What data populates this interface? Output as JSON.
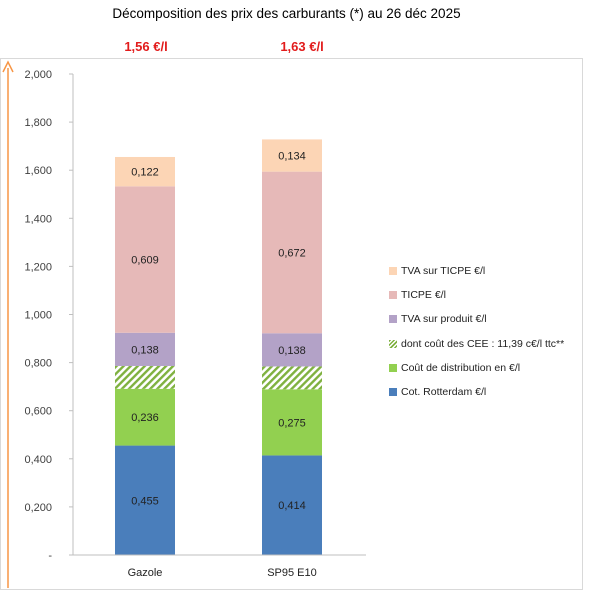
{
  "title": "Décomposition des prix des carburants (*) au 26 déc 2025",
  "price_labels": [
    "1,56 €/l",
    "1,63 €/l"
  ],
  "chart_data": {
    "type": "bar",
    "stacked": true,
    "title": "Décomposition des prix des carburants (*) au 26 déc 2025",
    "categories": [
      "Gazole",
      "SP95 E10"
    ],
    "ylim": [
      0,
      2.0
    ],
    "yticks": [
      0,
      0.2,
      0.4,
      0.6,
      0.8,
      1.0,
      1.2,
      1.4,
      1.6,
      1.8,
      2.0
    ],
    "ytick_labels": [
      "-",
      "0,200",
      "0,400",
      "0,600",
      "0,800",
      "1,000",
      "1,200",
      "1,400",
      "1,600",
      "1,800",
      "2,000"
    ],
    "grid": false,
    "legend_position": "right",
    "series": [
      {
        "name": "Cot. Rotterdam €/l",
        "color": "#4a7ebb",
        "values": [
          0.455,
          0.414
        ],
        "labels": [
          "0,455",
          "0,414"
        ],
        "pattern": "solid"
      },
      {
        "name": "Coût de distribution en €/l",
        "color": "#92d050",
        "values": [
          0.236,
          0.275
        ],
        "labels": [
          "0,236",
          "0,275"
        ],
        "pattern": "solid"
      },
      {
        "name": "dont coût des CEE : 11,39 c€/l ttc**",
        "color": "#92d050",
        "values": [
          0.095,
          0.095
        ],
        "labels": [
          "",
          ""
        ],
        "pattern": "hatch"
      },
      {
        "name": "TVA sur produit €/l",
        "color": "#b3a2c7",
        "values": [
          0.138,
          0.138
        ],
        "labels": [
          "0,138",
          "0,138"
        ],
        "pattern": "solid"
      },
      {
        "name": "TICPE €/l",
        "color": "#e6b9b8",
        "values": [
          0.609,
          0.672
        ],
        "labels": [
          "0,609",
          "0,672"
        ],
        "pattern": "solid"
      },
      {
        "name": "TVA sur TICPE €/l",
        "color": "#fcd5b5",
        "values": [
          0.122,
          0.134
        ],
        "labels": [
          "0,122",
          "0,134"
        ],
        "pattern": "solid"
      }
    ],
    "axis_arrow_color": "#f79646",
    "axis_color": "#bfbfbf"
  }
}
